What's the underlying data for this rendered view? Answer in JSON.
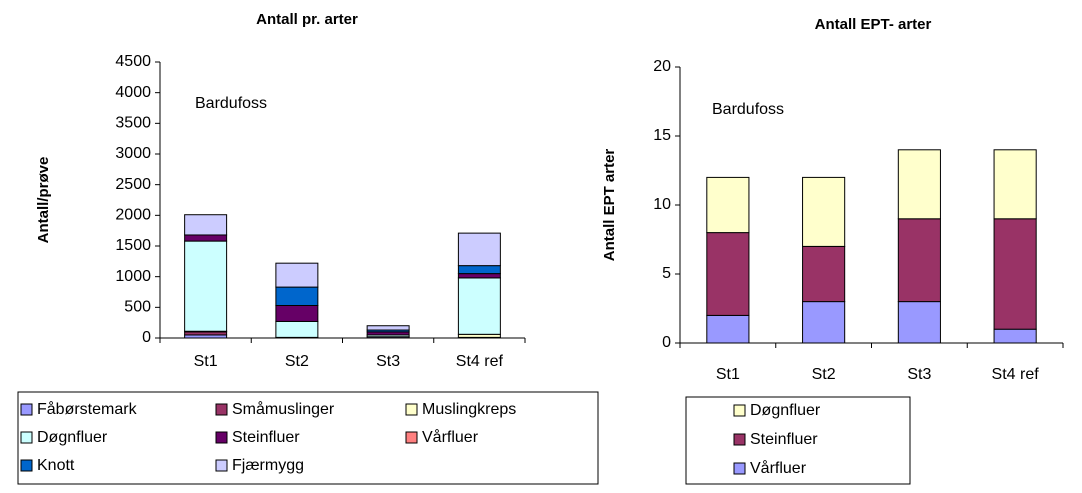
{
  "chart_data": [
    {
      "type": "bar",
      "stacked": true,
      "title": "Antall pr. arter",
      "ylabel": "Antall/prøve",
      "annotation": "Bardufoss",
      "categories": [
        "St1",
        "St2",
        "St3",
        "St4 ref"
      ],
      "ylim": [
        0,
        4500
      ],
      "yticks": [
        0,
        500,
        1000,
        1500,
        2000,
        2500,
        3000,
        3500,
        4000,
        4500
      ],
      "legend_order": "normal",
      "series": [
        {
          "name": "Fåbørstemark",
          "color": "#9999ff",
          "values": [
            50,
            10,
            20,
            10
          ]
        },
        {
          "name": "Småmuslinger",
          "color": "#993366",
          "values": [
            50,
            0,
            0,
            0
          ]
        },
        {
          "name": "Muslingkreps",
          "color": "#ffffcc",
          "values": [
            10,
            0,
            0,
            50
          ]
        },
        {
          "name": "Døgnfluer",
          "color": "#ccffff",
          "values": [
            1470,
            260,
            30,
            920
          ]
        },
        {
          "name": "Steinfluer",
          "color": "#660066",
          "values": [
            100,
            260,
            50,
            70
          ]
        },
        {
          "name": "Vårfluer",
          "color": "#ff8080",
          "values": [
            0,
            0,
            0,
            0
          ]
        },
        {
          "name": "Knott",
          "color": "#0066cc",
          "values": [
            0,
            300,
            30,
            130
          ]
        },
        {
          "name": "Fjærmygg",
          "color": "#ccccff",
          "values": [
            330,
            390,
            70,
            530
          ]
        }
      ]
    },
    {
      "type": "bar",
      "stacked": true,
      "title": "Antall EPT- arter",
      "ylabel": "Antall EPT arter",
      "annotation": "Bardufoss",
      "categories": [
        "St1",
        "St2",
        "St3",
        "St4 ref"
      ],
      "ylim": [
        0,
        20
      ],
      "yticks": [
        0,
        5,
        10,
        15,
        20
      ],
      "legend_order": "reversed",
      "series": [
        {
          "name": "Vårfluer",
          "color": "#9999ff",
          "values": [
            2,
            3,
            3,
            1
          ]
        },
        {
          "name": "Steinfluer",
          "color": "#993366",
          "values": [
            6,
            4,
            6,
            8
          ]
        },
        {
          "name": "Døgnfluer",
          "color": "#ffffcc",
          "values": [
            4,
            5,
            5,
            5
          ]
        }
      ]
    }
  ]
}
